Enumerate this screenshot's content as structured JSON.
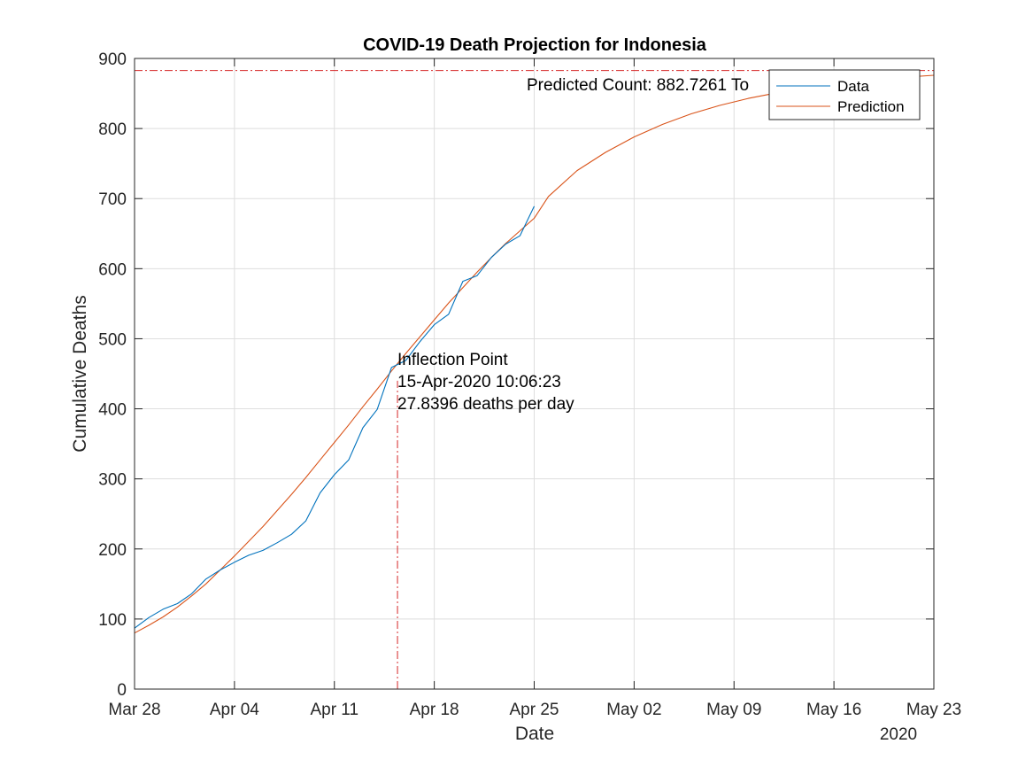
{
  "chart_data": {
    "type": "line",
    "title": "COVID-19 Death Projection for Indonesia",
    "xlabel": "Date",
    "ylabel": "Cumulative Deaths",
    "x_axis_type": "date",
    "xlim": [
      "2020-03-28",
      "2020-05-23"
    ],
    "ylim": [
      0,
      900
    ],
    "x_ticks": [
      {
        "date": "2020-03-28",
        "label": "Mar 28"
      },
      {
        "date": "2020-04-04",
        "label": "Apr 04"
      },
      {
        "date": "2020-04-11",
        "label": "Apr 11"
      },
      {
        "date": "2020-04-18",
        "label": "Apr 18"
      },
      {
        "date": "2020-04-25",
        "label": "Apr 25"
      },
      {
        "date": "2020-05-02",
        "label": "May 02"
      },
      {
        "date": "2020-05-09",
        "label": "May 09"
      },
      {
        "date": "2020-05-16",
        "label": "May 16"
      },
      {
        "date": "2020-05-23",
        "label": "May 23"
      }
    ],
    "x_secondary_label": "2020",
    "y_ticks": [
      0,
      100,
      200,
      300,
      400,
      500,
      600,
      700,
      800,
      900
    ],
    "grid": true,
    "legend_position": "top-right",
    "colors": {
      "data": "#0072BD",
      "prediction": "#D95319",
      "reference": "#D62728"
    },
    "series": [
      {
        "name": "Data",
        "color": "#0072BD",
        "x": [
          "2020-03-28",
          "2020-03-29",
          "2020-03-30",
          "2020-03-31",
          "2020-04-01",
          "2020-04-02",
          "2020-04-03",
          "2020-04-04",
          "2020-04-05",
          "2020-04-06",
          "2020-04-07",
          "2020-04-08",
          "2020-04-09",
          "2020-04-10",
          "2020-04-11",
          "2020-04-12",
          "2020-04-13",
          "2020-04-14",
          "2020-04-15",
          "2020-04-16",
          "2020-04-17",
          "2020-04-18",
          "2020-04-19",
          "2020-04-20",
          "2020-04-21",
          "2020-04-22",
          "2020-04-23",
          "2020-04-24",
          "2020-04-25"
        ],
        "y": [
          87,
          102,
          114,
          122,
          136,
          157,
          170,
          181,
          191,
          198,
          209,
          221,
          240,
          280,
          306,
          327,
          373,
          399,
          459,
          469,
          496,
          520,
          535,
          582,
          590,
          616,
          635,
          647,
          689
        ]
      },
      {
        "name": "Prediction",
        "color": "#D95319",
        "x": [
          "2020-03-28",
          "2020-03-29",
          "2020-03-30",
          "2020-03-31",
          "2020-04-01",
          "2020-04-02",
          "2020-04-03",
          "2020-04-04",
          "2020-04-05",
          "2020-04-06",
          "2020-04-07",
          "2020-04-08",
          "2020-04-09",
          "2020-04-10",
          "2020-04-11",
          "2020-04-12",
          "2020-04-13",
          "2020-04-14",
          "2020-04-15",
          "2020-04-16",
          "2020-04-17",
          "2020-04-18",
          "2020-04-19",
          "2020-04-20",
          "2020-04-21",
          "2020-04-22",
          "2020-04-23",
          "2020-04-24",
          "2020-04-25",
          "2020-04-26",
          "2020-04-28",
          "2020-04-30",
          "2020-05-02",
          "2020-05-04",
          "2020-05-06",
          "2020-05-08",
          "2020-05-10",
          "2020-05-12",
          "2020-05-14",
          "2020-05-16",
          "2020-05-18",
          "2020-05-20",
          "2020-05-23"
        ],
        "y": [
          80,
          91,
          103,
          117,
          133,
          150,
          170,
          190,
          211,
          232,
          255,
          278,
          302,
          327,
          352,
          377,
          403,
          428,
          454,
          479,
          503,
          527,
          551,
          573,
          595,
          616,
          636,
          654,
          672,
          703,
          740,
          766,
          788,
          806,
          821,
          833,
          843,
          851,
          858,
          864,
          868,
          872,
          876
        ]
      }
    ],
    "reference_lines": [
      {
        "orientation": "horizontal",
        "y": 882.7261,
        "style": "dash-dot"
      },
      {
        "orientation": "vertical",
        "x": "2020-04-15T10:06:23",
        "y_to": 440,
        "style": "dash-dot"
      }
    ],
    "annotations": {
      "predicted_count": "Predicted Count: 882.7261 To",
      "inflection_title": "Inflection Point",
      "inflection_date": "15-Apr-2020 10:06:23",
      "inflection_rate": "27.8396 deaths per day"
    }
  }
}
